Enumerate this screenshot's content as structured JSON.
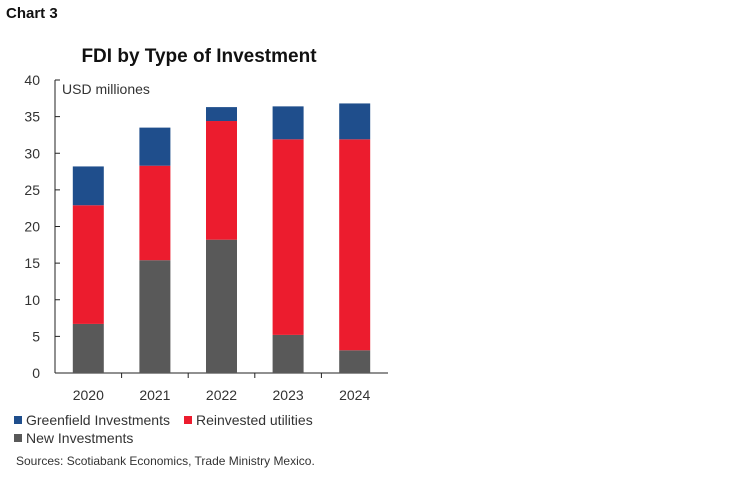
{
  "header": {
    "chart_label": "Chart 3"
  },
  "chart_data": {
    "type": "bar",
    "stacked": true,
    "title": "FDI by Type of Investment",
    "unit_label": "USD milliones",
    "categories": [
      "2020",
      "2021",
      "2022",
      "2023",
      "2024"
    ],
    "series": [
      {
        "name": "New Investments",
        "color": "#595959",
        "values": [
          6.7,
          15.4,
          18.2,
          5.2,
          3.1
        ]
      },
      {
        "name": "Reinvested utilities",
        "color": "#ec1c2e",
        "values": [
          16.2,
          12.9,
          16.2,
          26.7,
          28.8
        ]
      },
      {
        "name": "Greenfield Investments",
        "color": "#1f4e8c",
        "values": [
          5.3,
          5.2,
          1.9,
          4.5,
          4.9
        ]
      }
    ],
    "ylim": [
      0,
      40
    ],
    "yticks": [
      "0",
      "5",
      "10",
      "15",
      "20",
      "25",
      "30",
      "35",
      "40"
    ],
    "grid": false
  },
  "legend": {
    "greenfield": "Greenfield Investments",
    "reinvested": "Reinvested utilities",
    "new": "New Investments"
  },
  "footer": {
    "source": "Sources: Scotiabank Economics, Trade Ministry Mexico."
  }
}
